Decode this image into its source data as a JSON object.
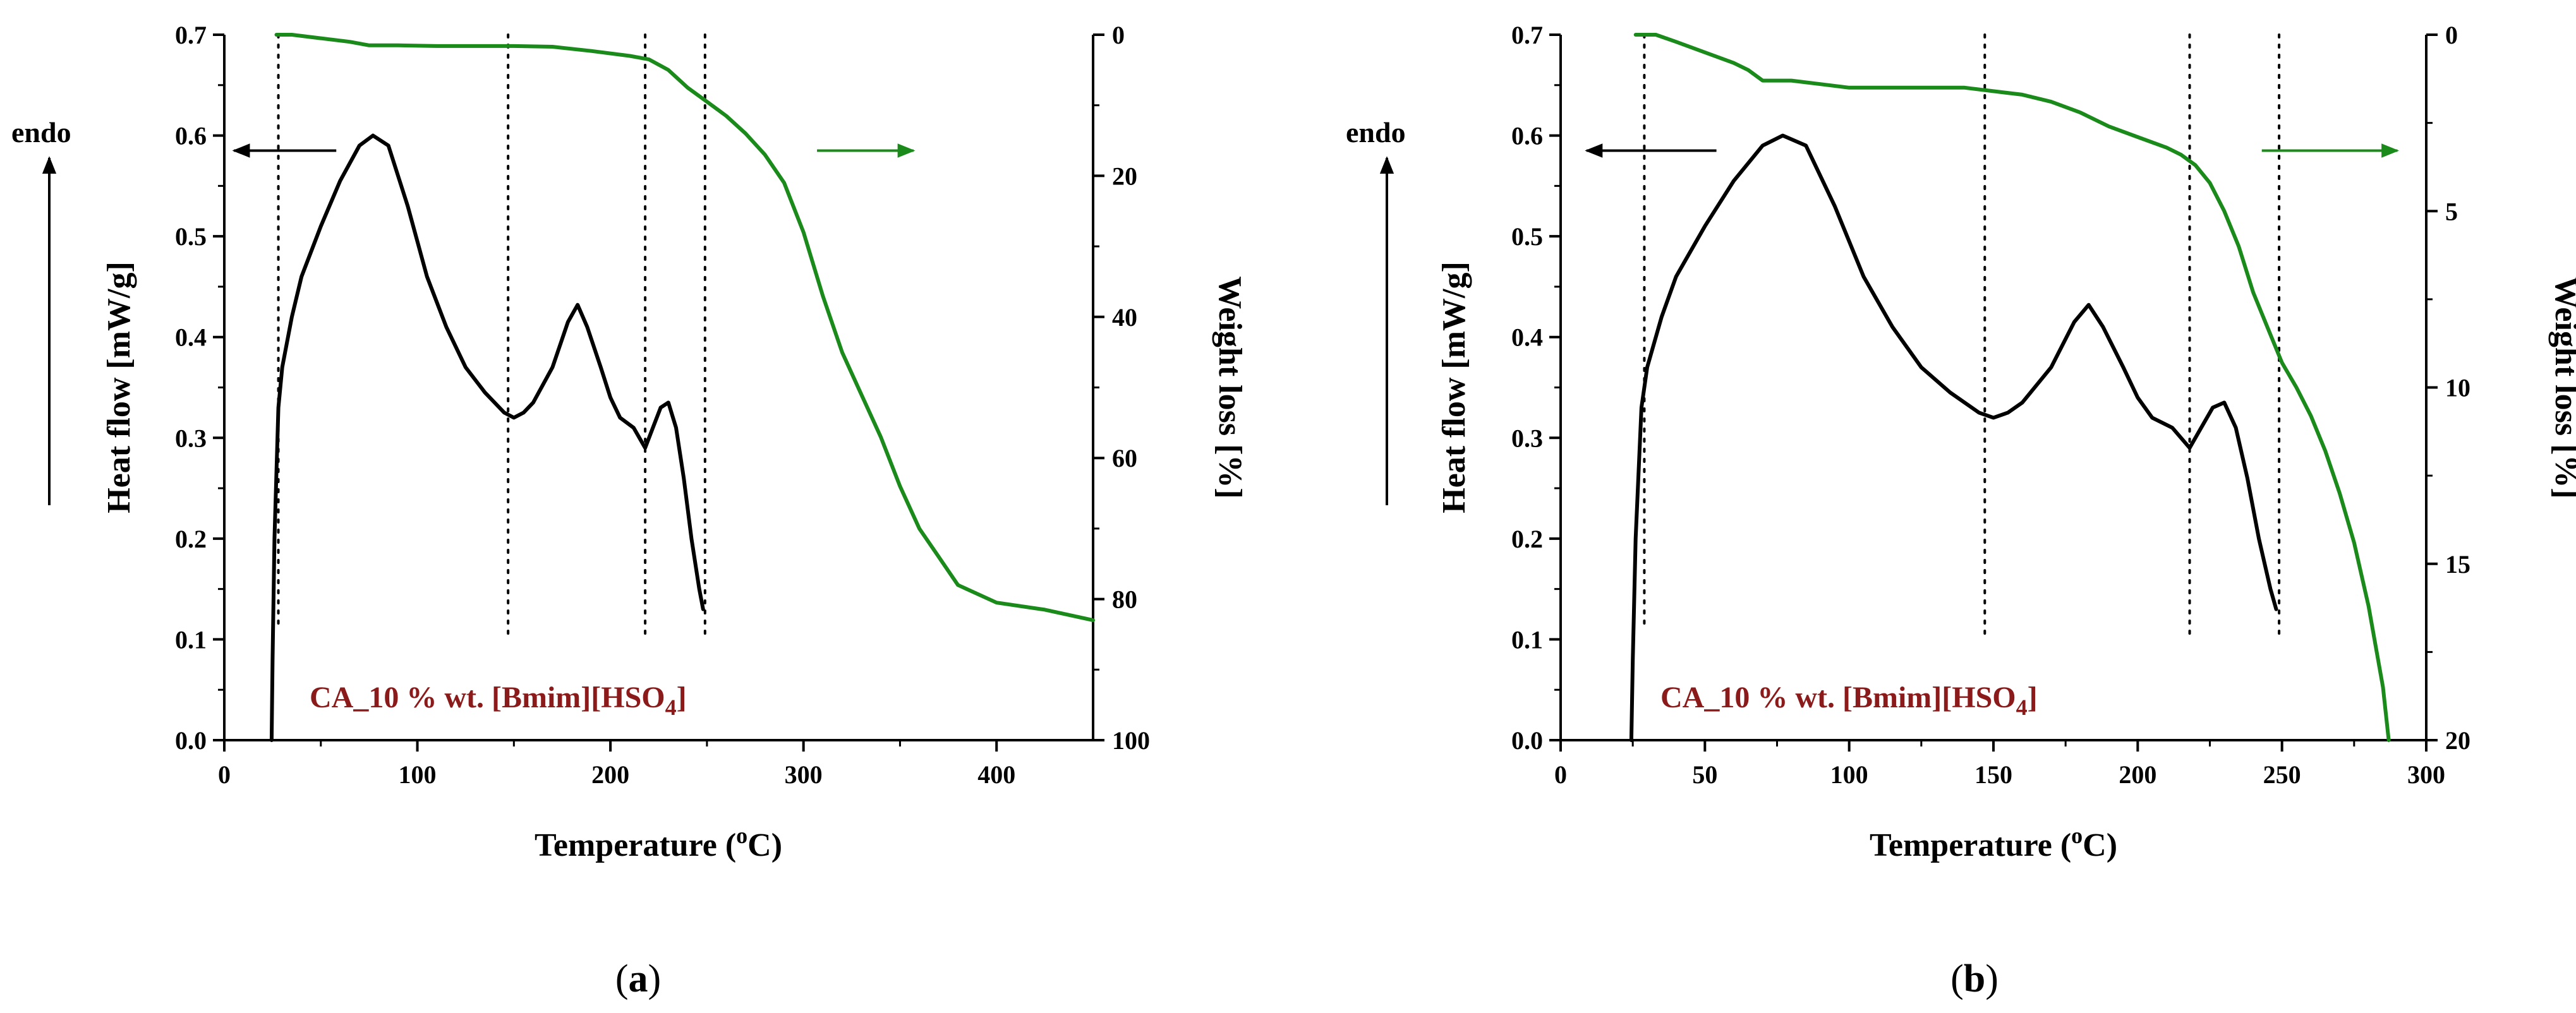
{
  "colors": {
    "heat": "#000000",
    "weight": "#1a8a1a",
    "annotation": "#8b1a1a",
    "axis": "#000000"
  },
  "chart_data": [
    {
      "type": "line",
      "panel": "a",
      "panel_label": "a",
      "annotation": {
        "prefix": "CA_10 % wt. [Bmim][HSO",
        "sub": "4",
        "suffix": "]"
      },
      "endo_label": "endo",
      "xlabel_pre": "Temperature (",
      "xlabel_sup": "o",
      "xlabel_post": "C)",
      "ylabel_left": "Heat flow [mW/g]",
      "ylabel_right": "Weight loss [%]",
      "xlim": [
        0,
        450
      ],
      "ylim_left": [
        0,
        0.7
      ],
      "ylim_right": [
        100,
        0
      ],
      "xticks": [
        0,
        100,
        200,
        300,
        400
      ],
      "yticks_left": [
        0.0,
        0.1,
        0.2,
        0.3,
        0.4,
        0.5,
        0.6,
        0.7
      ],
      "yticks_right": [
        0,
        20,
        40,
        60,
        80,
        100
      ],
      "vlines": [
        {
          "x": 28,
          "y0": 0.11,
          "y1": 0.7
        },
        {
          "x": 147,
          "y0": 0.1,
          "y1": 0.7
        },
        {
          "x": 218,
          "y0": 0.1,
          "y1": 0.7
        },
        {
          "x": 249,
          "y0": 0.1,
          "y1": 0.7
        }
      ],
      "arrow_heat": {
        "x_from": 58,
        "x_to": 5,
        "y": 0.585
      },
      "arrow_weight": {
        "x_from": 307,
        "x_to": 357,
        "y": 0.585
      },
      "series": [
        {
          "name": "Heat flow",
          "axis": "left",
          "color": "#000000",
          "x": [
            24.5,
            25,
            26,
            28,
            30,
            35,
            40,
            50,
            60,
            70,
            77,
            85,
            95,
            105,
            115,
            125,
            135,
            145,
            150,
            155,
            160,
            170,
            178,
            183,
            188,
            195,
            200,
            205,
            212,
            218,
            222,
            226,
            230,
            234,
            238,
            242,
            246,
            248
          ],
          "y": [
            0.0,
            0.08,
            0.2,
            0.33,
            0.37,
            0.42,
            0.46,
            0.51,
            0.555,
            0.59,
            0.6,
            0.59,
            0.53,
            0.46,
            0.41,
            0.37,
            0.345,
            0.325,
            0.32,
            0.325,
            0.335,
            0.37,
            0.415,
            0.432,
            0.41,
            0.37,
            0.34,
            0.32,
            0.31,
            0.29,
            0.31,
            0.33,
            0.335,
            0.31,
            0.26,
            0.2,
            0.15,
            0.13
          ]
        },
        {
          "name": "Weight loss",
          "axis": "right",
          "color": "#1a8a1a",
          "x": [
            27,
            35,
            50,
            65,
            75,
            90,
            110,
            130,
            150,
            170,
            190,
            210,
            220,
            230,
            240,
            250,
            260,
            270,
            280,
            290,
            300,
            310,
            320,
            330,
            340,
            350,
            360,
            370,
            380,
            400,
            425,
            450
          ],
          "y": [
            0,
            0,
            0.5,
            1,
            1.5,
            1.5,
            1.6,
            1.6,
            1.6,
            1.7,
            2.3,
            3,
            3.5,
            5,
            7.5,
            9.5,
            11.5,
            14,
            17,
            21,
            28,
            37,
            45,
            51,
            57,
            64,
            70,
            74,
            78,
            80.5,
            81.5,
            83
          ]
        }
      ]
    },
    {
      "type": "line",
      "panel": "b",
      "panel_label": "b",
      "annotation": {
        "prefix": "CA_10 % wt. [Bmim][HSO",
        "sub": "4",
        "suffix": "]"
      },
      "endo_label": "endo",
      "xlabel_pre": "Temperature (",
      "xlabel_sup": "o",
      "xlabel_post": "C)",
      "ylabel_left": "Heat flow [mW/g]",
      "ylabel_right": "Weight loss [%]",
      "xlim": [
        0,
        300
      ],
      "ylim_left": [
        0,
        0.7
      ],
      "ylim_right": [
        20,
        0
      ],
      "xticks": [
        0,
        50,
        100,
        150,
        200,
        250,
        300
      ],
      "yticks_left": [
        0.0,
        0.1,
        0.2,
        0.3,
        0.4,
        0.5,
        0.6,
        0.7
      ],
      "yticks_right": [
        0,
        5,
        10,
        15,
        20
      ],
      "vlines": [
        {
          "x": 29,
          "y0": 0.11,
          "y1": 0.7
        },
        {
          "x": 147,
          "y0": 0.1,
          "y1": 0.7
        },
        {
          "x": 218,
          "y0": 0.1,
          "y1": 0.7
        },
        {
          "x": 249,
          "y0": 0.1,
          "y1": 0.7
        }
      ],
      "arrow_heat": {
        "x_from": 54,
        "x_to": 9,
        "y": 0.585
      },
      "arrow_weight": {
        "x_from": 243,
        "x_to": 290,
        "y": 0.585
      },
      "series": [
        {
          "name": "Heat flow",
          "axis": "left",
          "color": "#000000",
          "x": [
            24.5,
            25,
            26,
            28,
            30,
            35,
            40,
            50,
            60,
            70,
            77,
            85,
            95,
            105,
            115,
            125,
            135,
            145,
            150,
            155,
            160,
            170,
            178,
            183,
            188,
            195,
            200,
            205,
            212,
            218,
            222,
            226,
            230,
            234,
            238,
            242,
            246,
            248
          ],
          "y": [
            0.0,
            0.08,
            0.2,
            0.33,
            0.37,
            0.42,
            0.46,
            0.51,
            0.555,
            0.59,
            0.6,
            0.59,
            0.53,
            0.46,
            0.41,
            0.37,
            0.345,
            0.325,
            0.32,
            0.325,
            0.335,
            0.37,
            0.415,
            0.432,
            0.41,
            0.37,
            0.34,
            0.32,
            0.31,
            0.29,
            0.31,
            0.33,
            0.335,
            0.31,
            0.26,
            0.2,
            0.15,
            0.13
          ]
        },
        {
          "name": "Weight loss",
          "axis": "right",
          "color": "#1a8a1a",
          "x": [
            26,
            33,
            40,
            50,
            60,
            65,
            70,
            75,
            80,
            90,
            100,
            120,
            140,
            150,
            160,
            170,
            180,
            190,
            200,
            210,
            215,
            220,
            225,
            230,
            235,
            240,
            245,
            250,
            255,
            260,
            265,
            270,
            275,
            280,
            285,
            287
          ],
          "y": [
            0.0,
            0.0,
            0.2,
            0.5,
            0.8,
            1.0,
            1.3,
            1.3,
            1.3,
            1.4,
            1.5,
            1.5,
            1.5,
            1.6,
            1.7,
            1.9,
            2.2,
            2.6,
            2.9,
            3.2,
            3.4,
            3.7,
            4.2,
            5.0,
            6.0,
            7.3,
            8.3,
            9.3,
            10.0,
            10.8,
            11.8,
            13.0,
            14.4,
            16.2,
            18.5,
            20.0
          ]
        }
      ]
    }
  ]
}
